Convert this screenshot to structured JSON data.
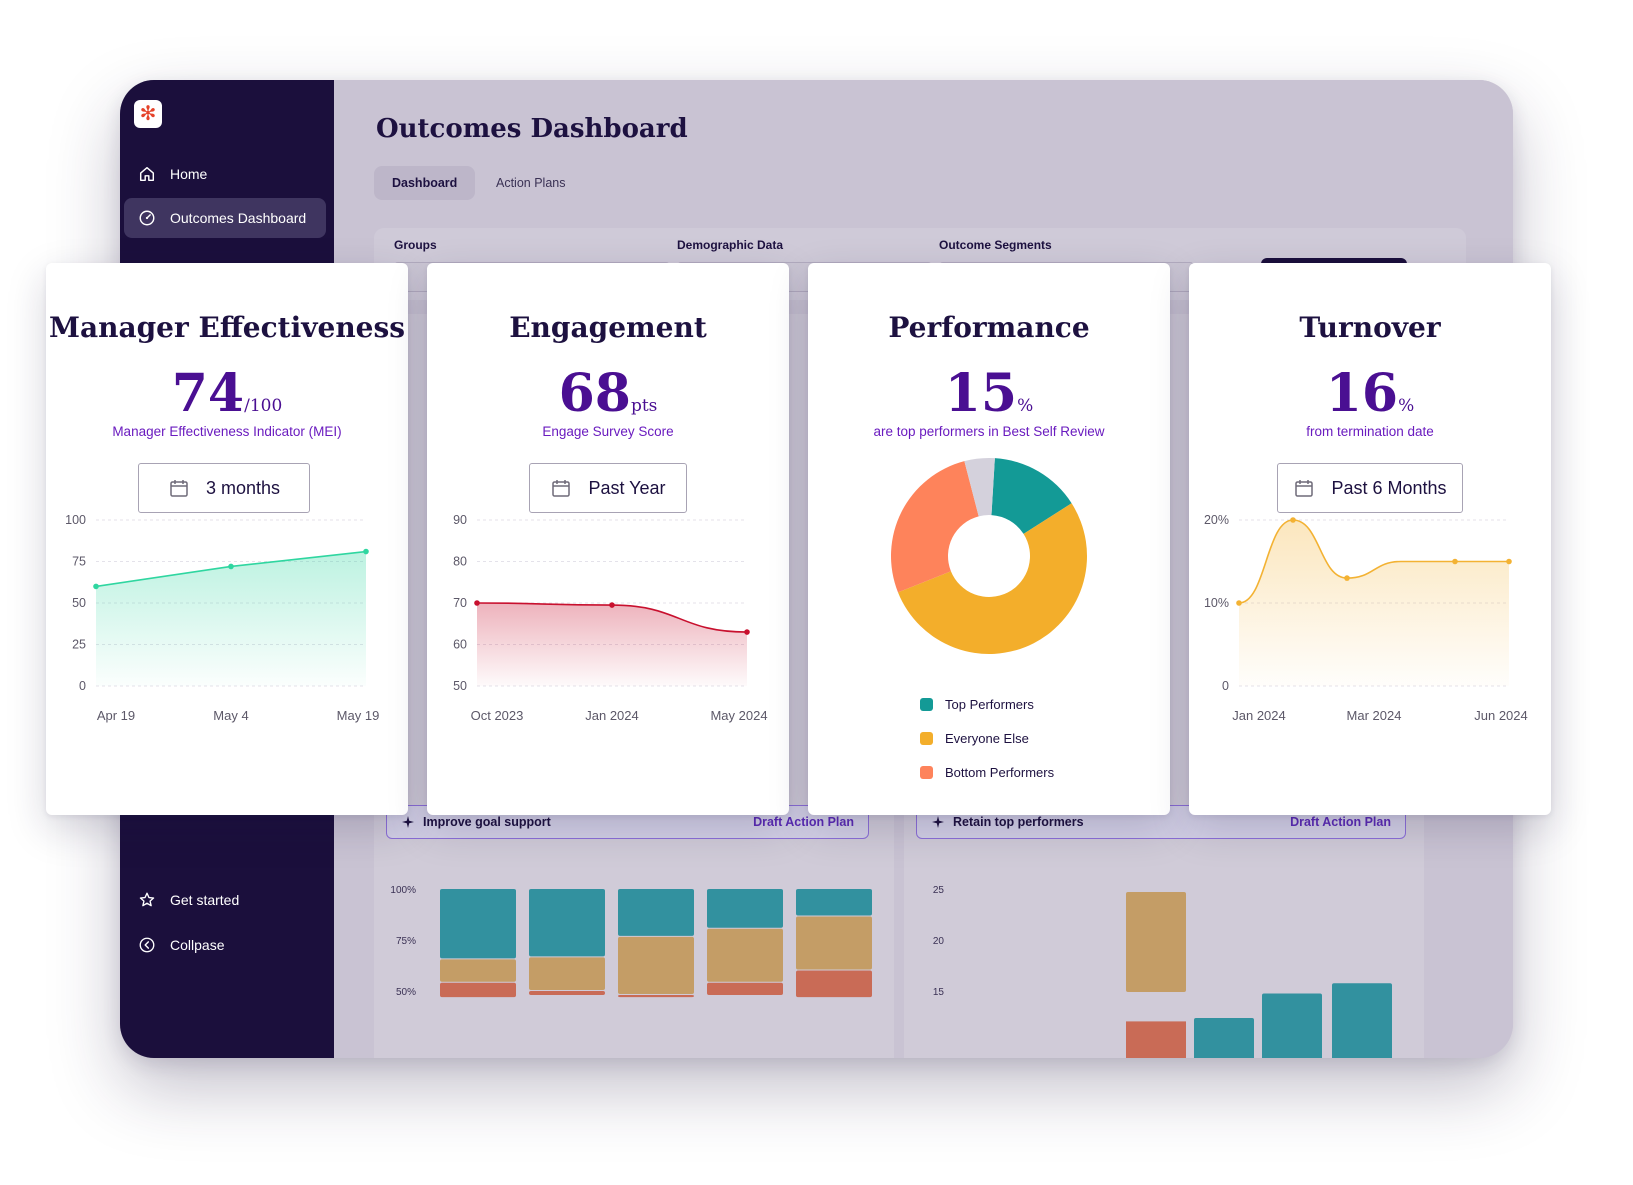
{
  "sidebar": {
    "items": [
      {
        "label": "Home",
        "icon": "home-icon"
      },
      {
        "label": "Outcomes Dashboard",
        "icon": "dashboard-icon"
      }
    ],
    "footer": [
      {
        "label": "Get started",
        "icon": "star-icon"
      },
      {
        "label": "Collpase",
        "icon": "chevron-left-circle-icon"
      }
    ]
  },
  "main": {
    "title": "Outcomes Dashboard",
    "tabs": [
      {
        "label": "Dashboard",
        "active": true
      },
      {
        "label": "Action Plans",
        "active": false
      }
    ],
    "filters": {
      "groups_label": "Groups",
      "demographic_label": "Demographic Data",
      "segments_label": "Outcome Segments"
    },
    "action_bars": [
      {
        "label": "Improve goal support",
        "action": "Draft Action Plan"
      },
      {
        "label": "Retain top performers",
        "action": "Draft Action Plan"
      }
    ],
    "bg_chart_left": {
      "y_ticks": [
        "100%",
        "75%",
        "50%"
      ],
      "series_colors": [
        "#168795",
        "#c29552",
        "#c85a3f"
      ],
      "bars": [
        {
          "teal": 0.34,
          "tan": 0.11,
          "red": 0.07
        },
        {
          "teal": 0.33,
          "tan": 0.16,
          "red": 0.02
        },
        {
          "teal": 0.23,
          "tan": 0.28,
          "red": 0.01
        },
        {
          "teal": 0.19,
          "tan": 0.26,
          "red": 0.06
        },
        {
          "teal": 0.13,
          "tan": 0.26,
          "red": 0.13
        }
      ]
    },
    "bg_chart_right": {
      "y_ticks": [
        "25",
        "20",
        "15"
      ],
      "bars": [
        {
          "tan": 10,
          "red": 3
        },
        {
          "teal": 0.1
        },
        {
          "teal": 2.5
        },
        {
          "teal": 3.5
        }
      ]
    }
  },
  "cards": [
    {
      "id": "manager-effectiveness",
      "title": "Manager Effectiveness",
      "value": "74",
      "unit": "/100",
      "subtitle": "Manager Effectiveness Indicator (MEI)",
      "period": "3 months",
      "chart_data": {
        "type": "area",
        "x": [
          "Apr 19",
          "May 4",
          "May 19"
        ],
        "values": [
          60,
          72,
          81
        ],
        "ylim": [
          0,
          100
        ],
        "y_ticks": [
          "100",
          "75",
          "50",
          "25",
          "0"
        ],
        "color": "#2fd6a0"
      }
    },
    {
      "id": "engagement",
      "title": "Engagement",
      "value": "68",
      "unit": "pts",
      "subtitle": "Engage Survey Score",
      "period": "Past Year",
      "chart_data": {
        "type": "area",
        "x": [
          "Oct 2023",
          "Jan 2024",
          "May 2024"
        ],
        "values": [
          70,
          69.5,
          63
        ],
        "ylim": [
          50,
          90
        ],
        "y_ticks": [
          "90",
          "80",
          "70",
          "60",
          "50"
        ],
        "color": "#c8102e"
      }
    },
    {
      "id": "performance",
      "title": "Performance",
      "value": "15",
      "unit": "%",
      "subtitle": "are top performers in Best Self Review",
      "chart_data": {
        "type": "pie",
        "slices": [
          {
            "name": "Top Performers",
            "value": 15,
            "color": "#139a96"
          },
          {
            "name": "Everyone Else",
            "value": 53,
            "color": "#f3ae2b"
          },
          {
            "name": "Bottom Performers",
            "value": 27,
            "color": "#fe835b"
          },
          {
            "name": "",
            "value": 5,
            "color": "#d4d1dc"
          }
        ]
      }
    },
    {
      "id": "turnover",
      "title": "Turnover",
      "value": "16",
      "unit": "%",
      "subtitle": "from termination date",
      "period": "Past 6 Months",
      "chart_data": {
        "type": "area",
        "x": [
          "Jan 2024",
          "Mar 2024",
          "Jun 2024"
        ],
        "points": [
          10,
          20,
          13,
          15,
          15,
          15
        ],
        "ylim": [
          0,
          20
        ],
        "y_ticks": [
          "20%",
          "10%",
          "0"
        ],
        "color": "#f3b233"
      }
    }
  ]
}
